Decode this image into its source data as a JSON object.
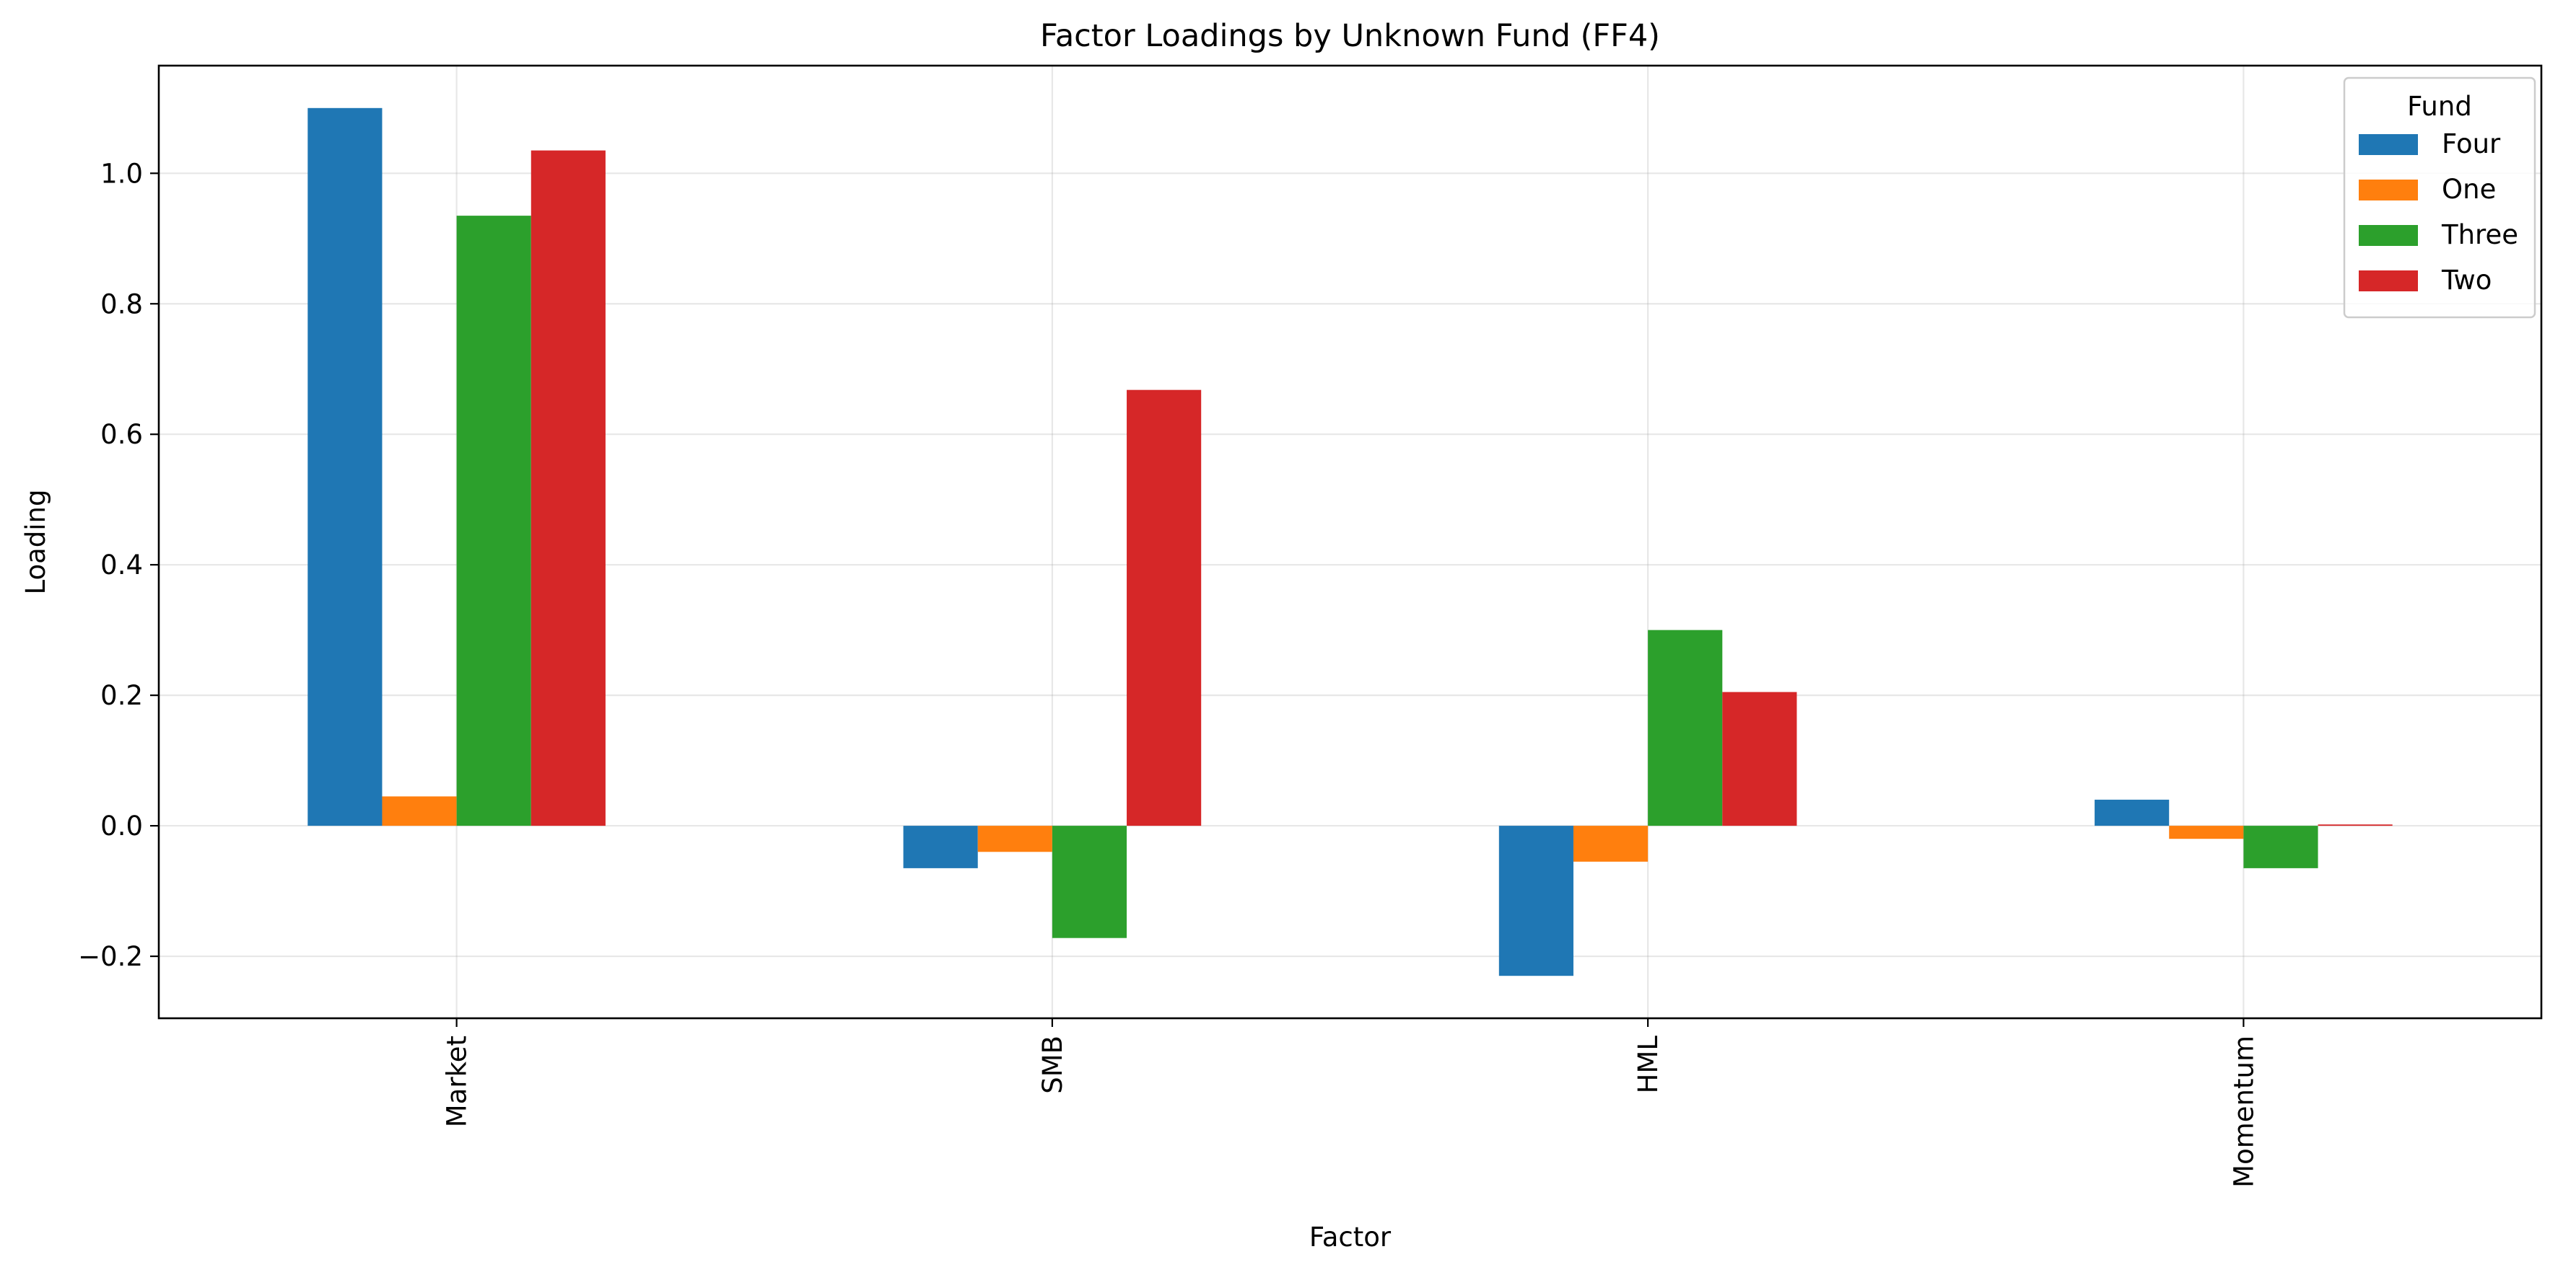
{
  "chart_data": {
    "type": "bar",
    "title": "Factor Loadings by Unknown Fund (FF4)",
    "xlabel": "Factor",
    "ylabel": "Loading",
    "categories": [
      "Market",
      "SMB",
      "HML",
      "Momentum"
    ],
    "ylim": [
      -0.295,
      1.165
    ],
    "yticks": [
      -0.2,
      0.0,
      0.2,
      0.4,
      0.6,
      0.8,
      1.0
    ],
    "ytick_labels": [
      "−0.2",
      "0.0",
      "0.2",
      "0.4",
      "0.6",
      "0.8",
      "1.0"
    ],
    "grid": true,
    "legend": {
      "title": "Fund",
      "placement": "top-right"
    },
    "series": [
      {
        "name": "Four",
        "color": "#1f77b4",
        "values": [
          1.1,
          -0.065,
          -0.23,
          0.04
        ]
      },
      {
        "name": "One",
        "color": "#ff7f0e",
        "values": [
          0.045,
          -0.04,
          -0.055,
          -0.02
        ]
      },
      {
        "name": "Three",
        "color": "#2ca02c",
        "values": [
          0.935,
          -0.172,
          0.3,
          -0.065
        ]
      },
      {
        "name": "Two",
        "color": "#d62728",
        "values": [
          1.035,
          0.668,
          0.205,
          0.002
        ]
      }
    ]
  }
}
